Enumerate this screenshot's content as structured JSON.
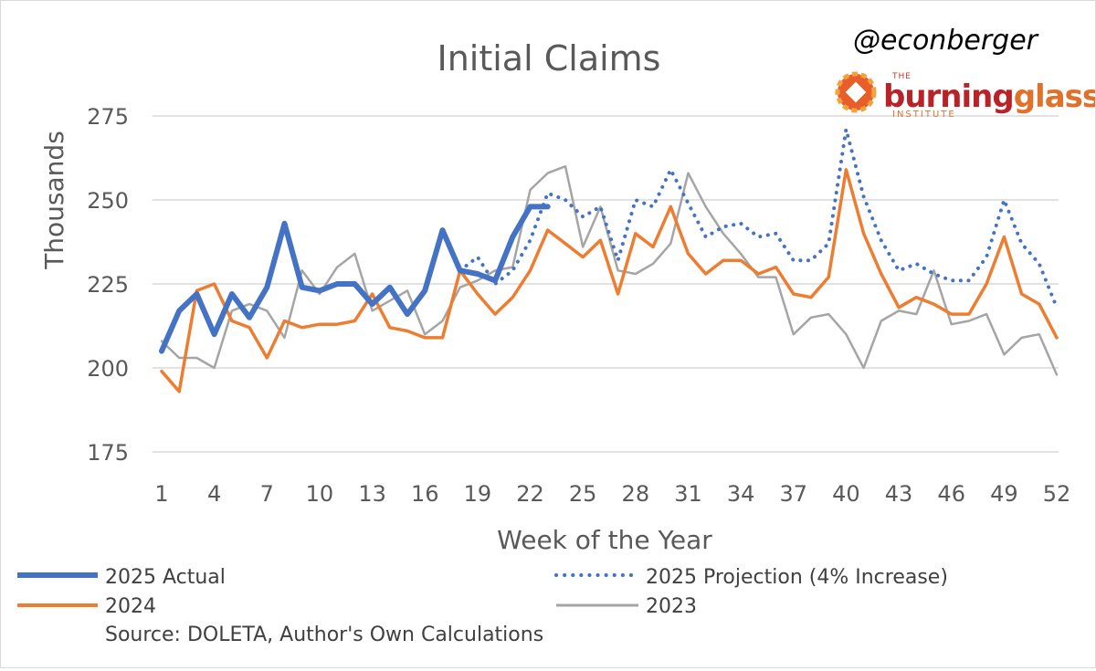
{
  "chart_data": {
    "type": "line",
    "title": "Initial Claims",
    "xlabel": "Week of the Year",
    "ylabel": "Thousands",
    "ylim": [
      175,
      275
    ],
    "xlim": [
      1,
      52
    ],
    "y_ticks": [
      175,
      200,
      225,
      250,
      275
    ],
    "x_ticks": [
      1,
      4,
      7,
      10,
      13,
      16,
      19,
      22,
      25,
      28,
      31,
      34,
      37,
      40,
      43,
      46,
      49,
      52
    ],
    "grid": "horizontal",
    "legend_position": "bottom",
    "series": [
      {
        "name": "2025 Actual",
        "color": "#4472c4",
        "style": "solid-thick",
        "x": [
          1,
          2,
          3,
          4,
          5,
          6,
          7,
          8,
          9,
          10,
          11,
          12,
          13,
          14,
          15,
          16,
          17,
          18,
          19,
          20,
          21,
          22,
          23
        ],
        "values": [
          205,
          217,
          222,
          210,
          222,
          215,
          224,
          243,
          224,
          223,
          225,
          225,
          219,
          224,
          216,
          223,
          241,
          229,
          228,
          226,
          239,
          248,
          248
        ]
      },
      {
        "name": "2025 Projection (4% Increase)",
        "color": "#4472c4",
        "style": "dotted",
        "x": [
          18,
          19,
          20,
          21,
          22,
          23,
          24,
          25,
          26,
          27,
          28,
          29,
          30,
          31,
          32,
          33,
          34,
          35,
          36,
          37,
          38,
          39,
          40,
          41,
          42,
          43,
          44,
          45,
          46,
          47,
          48,
          49,
          50,
          51,
          52
        ],
        "values": [
          229,
          233,
          225,
          229,
          238,
          252,
          250,
          245,
          248,
          232,
          250,
          248,
          259,
          249,
          239,
          242,
          243,
          239,
          240,
          232,
          232,
          237,
          271,
          251,
          238,
          229,
          231,
          228,
          226,
          226,
          233,
          250,
          237,
          231,
          218
        ]
      },
      {
        "name": "2024",
        "color": "#ed7d31",
        "style": "solid",
        "x": [
          1,
          2,
          3,
          4,
          5,
          6,
          7,
          8,
          9,
          10,
          11,
          12,
          13,
          14,
          15,
          16,
          17,
          18,
          19,
          20,
          21,
          22,
          23,
          24,
          25,
          26,
          27,
          28,
          29,
          30,
          31,
          32,
          33,
          34,
          35,
          36,
          37,
          38,
          39,
          40,
          41,
          42,
          43,
          44,
          45,
          46,
          47,
          48,
          49,
          50,
          51,
          52
        ],
        "values": [
          199,
          193,
          223,
          225,
          214,
          212,
          203,
          214,
          212,
          213,
          213,
          214,
          222,
          212,
          211,
          209,
          209,
          229,
          222,
          216,
          221,
          229,
          241,
          237,
          233,
          238,
          222,
          240,
          236,
          248,
          234,
          228,
          232,
          232,
          228,
          230,
          222,
          221,
          227,
          259,
          240,
          228,
          218,
          221,
          219,
          216,
          216,
          225,
          239,
          222,
          219,
          209
        ]
      },
      {
        "name": "2023",
        "color": "#a5a5a5",
        "style": "solid-thin",
        "x": [
          1,
          2,
          3,
          4,
          5,
          6,
          7,
          8,
          9,
          10,
          11,
          12,
          13,
          14,
          15,
          16,
          17,
          18,
          19,
          20,
          21,
          22,
          23,
          24,
          25,
          26,
          27,
          28,
          29,
          30,
          31,
          32,
          33,
          34,
          35,
          36,
          37,
          38,
          39,
          40,
          41,
          42,
          43,
          44,
          45,
          46,
          47,
          48,
          49,
          50,
          51,
          52
        ],
        "values": [
          208,
          203,
          203,
          200,
          217,
          219,
          217,
          209,
          229,
          222,
          230,
          234,
          217,
          220,
          223,
          210,
          214,
          224,
          226,
          229,
          230,
          253,
          258,
          260,
          236,
          248,
          229,
          228,
          231,
          237,
          258,
          248,
          240,
          234,
          227,
          227,
          210,
          215,
          216,
          210,
          200,
          214,
          217,
          216,
          229,
          213,
          214,
          216,
          204,
          209,
          210,
          198
        ]
      }
    ],
    "annotations": {
      "handle": "@econberger",
      "logo_the": "THE",
      "logo_word1": "burning",
      "logo_word2": "glass",
      "logo_institute": "INSTITUTE",
      "source": "Source: DOLETA, Author's Own Calculations"
    }
  }
}
